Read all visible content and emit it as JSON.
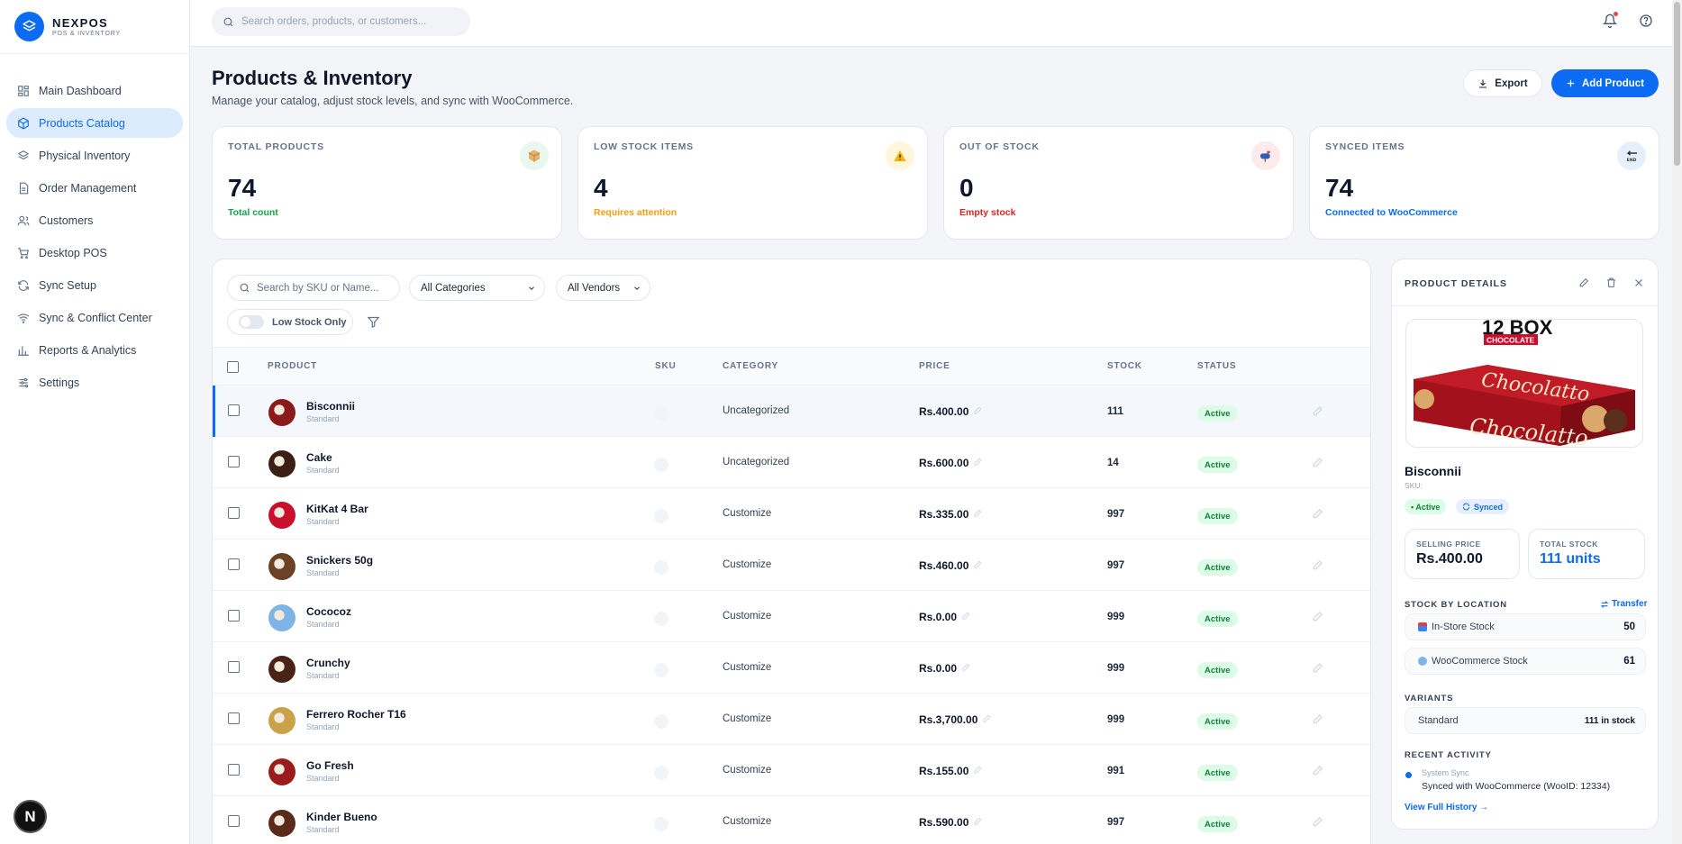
{
  "brand": {
    "name": "NEXPOS",
    "sub": "POS & INVENTORY"
  },
  "sidebar": {
    "items": [
      {
        "label": "Main Dashboard",
        "icon": "dashboard-icon",
        "active": false
      },
      {
        "label": "Products Catalog",
        "icon": "box-icon",
        "active": true
      },
      {
        "label": "Physical Inventory",
        "icon": "layers-icon",
        "active": false
      },
      {
        "label": "Order Management",
        "icon": "document-icon",
        "active": false
      },
      {
        "label": "Customers",
        "icon": "users-icon",
        "active": false
      },
      {
        "label": "Desktop POS",
        "icon": "cart-icon",
        "active": false
      },
      {
        "label": "Sync Setup",
        "icon": "refresh-icon",
        "active": false
      },
      {
        "label": "Sync & Conflict Center",
        "icon": "wifi-icon",
        "active": false
      },
      {
        "label": "Reports & Analytics",
        "icon": "bar-chart-icon",
        "active": false
      },
      {
        "label": "Settings",
        "icon": "sliders-icon",
        "active": false
      }
    ],
    "badge": "N"
  },
  "topbar": {
    "search_placeholder": "Search orders, products, or customers..."
  },
  "header": {
    "title": "Products & Inventory",
    "subtitle": "Manage your catalog, adjust stock levels, and sync with WooCommerce.",
    "export_label": "Export",
    "add_label": "Add Product"
  },
  "stats": [
    {
      "label": "TOTAL PRODUCTS",
      "value": "74",
      "note": "Total count",
      "note_color": "#16a34a",
      "icon_bg": "#e8f8ee",
      "icon": "package-icon"
    },
    {
      "label": "LOW STOCK ITEMS",
      "value": "4",
      "note": "Requires attention",
      "note_color": "#f59e0b",
      "icon_bg": "#fff6db",
      "icon": "warning-icon"
    },
    {
      "label": "OUT OF STOCK",
      "value": "0",
      "note": "Empty stock",
      "note_color": "#dc2626",
      "icon_bg": "#fdeaea",
      "icon": "mailbox-icon"
    },
    {
      "label": "SYNCED ITEMS",
      "value": "74",
      "note": "Connected to WooCommerce",
      "note_color": "#0b6bf2",
      "icon_bg": "#e6f0fd",
      "icon": "end-arrow-icon"
    }
  ],
  "filters": {
    "search_placeholder": "Search by SKU or Name...",
    "category": "All Categories",
    "vendor": "All Vendors",
    "low_stock_label": "Low Stock Only"
  },
  "table": {
    "headers": {
      "product": "PRODUCT",
      "sku": "SKU",
      "category": "CATEGORY",
      "price": "PRICE",
      "stock": "STOCK",
      "status": "STATUS"
    },
    "rows": [
      {
        "name": "Bisconnii",
        "type": "Standard",
        "category": "Uncategorized",
        "price": "Rs.400.00",
        "stock": "111",
        "status": "Active",
        "thumb": "#8b1a1a",
        "selected": true
      },
      {
        "name": "Cake",
        "type": "Standard",
        "category": "Uncategorized",
        "price": "Rs.600.00",
        "stock": "14",
        "status": "Active",
        "thumb": "#3b1f14",
        "selected": false
      },
      {
        "name": "KitKat 4 Bar",
        "type": "Standard",
        "category": "Customize",
        "price": "Rs.335.00",
        "stock": "997",
        "status": "Active",
        "thumb": "#c8102e",
        "selected": false
      },
      {
        "name": "Snickers 50g",
        "type": "Standard",
        "category": "Customize",
        "price": "Rs.460.00",
        "stock": "997",
        "status": "Active",
        "thumb": "#6b4226",
        "selected": false
      },
      {
        "name": "Cococoz",
        "type": "Standard",
        "category": "Customize",
        "price": "Rs.0.00",
        "stock": "999",
        "status": "Active",
        "thumb": "#7fb4e6",
        "selected": false
      },
      {
        "name": "Crunchy",
        "type": "Standard",
        "category": "Customize",
        "price": "Rs.0.00",
        "stock": "999",
        "status": "Active",
        "thumb": "#4a2318",
        "selected": false
      },
      {
        "name": "Ferrero Rocher T16",
        "type": "Standard",
        "category": "Customize",
        "price": "Rs.3,700.00",
        "stock": "999",
        "status": "Active",
        "thumb": "#c9a24a",
        "selected": false
      },
      {
        "name": "Go Fresh",
        "type": "Standard",
        "category": "Customize",
        "price": "Rs.155.00",
        "stock": "991",
        "status": "Active",
        "thumb": "#9b1c1c",
        "selected": false
      },
      {
        "name": "Kinder Bueno",
        "type": "Standard",
        "category": "Customize",
        "price": "Rs.590.00",
        "stock": "997",
        "status": "Active",
        "thumb": "#5a2a1a",
        "selected": false
      }
    ]
  },
  "details": {
    "title": "PRODUCT DETAILS",
    "image_text_top": "12 BOX",
    "image_text_tag": "CHOCOLATE",
    "image_brand": "Chocolatto",
    "name": "Bisconnii",
    "sku": "SKU:",
    "status_pill": "• Active",
    "sync_pill": "Synced",
    "selling_price_label": "SELLING PRICE",
    "selling_price": "Rs.400.00",
    "total_stock_label": "TOTAL STOCK",
    "total_stock": "111 units",
    "stock_by_location_label": "STOCK BY LOCATION",
    "transfer_label": "Transfer",
    "locations": [
      {
        "name": "In-Store Stock",
        "value": "50",
        "icon": "store-icon"
      },
      {
        "name": "WooCommerce Stock",
        "value": "61",
        "icon": "globe-icon"
      }
    ],
    "variants_label": "VARIANTS",
    "variant": {
      "name": "Standard",
      "stock": "111 in stock"
    },
    "activity_label": "RECENT ACTIVITY",
    "activity": {
      "source": "System Sync",
      "text": "Synced with WooCommerce (WooID: 12334)"
    },
    "history_link": "View Full History →"
  },
  "colors": {
    "accent": "#0b6bf2",
    "active_bg": "#dcfce7",
    "active_text": "#15803d"
  }
}
